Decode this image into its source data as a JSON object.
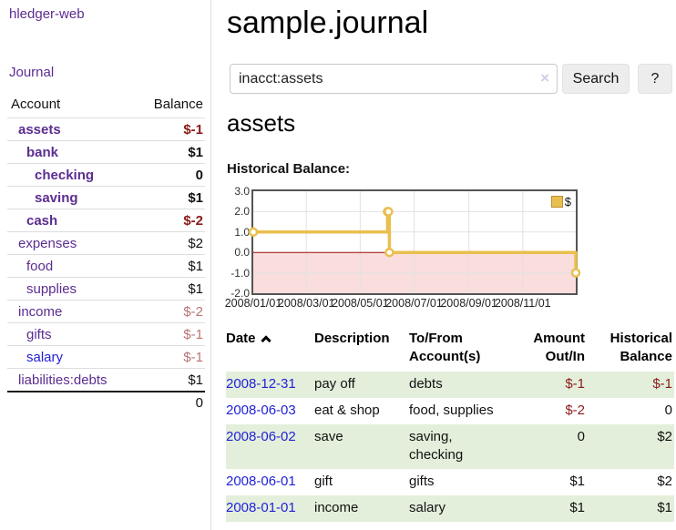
{
  "sidebar": {
    "app_title": "hledger-web",
    "nav": {
      "journal_label": "Journal"
    },
    "accounts_table": {
      "headers": {
        "account": "Account",
        "balance": "Balance"
      },
      "rows": [
        {
          "name": "assets",
          "balance": "$-1"
        },
        {
          "name": "bank",
          "balance": "$1"
        },
        {
          "name": "checking",
          "balance": "0"
        },
        {
          "name": "saving",
          "balance": "$1"
        },
        {
          "name": "cash",
          "balance": "$-2"
        },
        {
          "name": "expenses",
          "balance": "$2"
        },
        {
          "name": "food",
          "balance": "$1"
        },
        {
          "name": "supplies",
          "balance": "$1"
        },
        {
          "name": "income",
          "balance": "$-2"
        },
        {
          "name": "gifts",
          "balance": "$-1"
        },
        {
          "name": "salary",
          "balance": "$-1"
        },
        {
          "name": "liabilities:debts",
          "balance": "$1"
        }
      ],
      "total": "0"
    }
  },
  "header": {
    "title": "sample.journal"
  },
  "search": {
    "value": "inacct:assets",
    "clear_icon": "×",
    "search_label": "Search",
    "help_label": "?"
  },
  "account_page": {
    "title": "assets",
    "chart_label": "Historical Balance:"
  },
  "chart_data": {
    "type": "line",
    "step": true,
    "title": "Historical Balance:",
    "x_range": [
      "2008-01-01",
      "2008-12-31"
    ],
    "ylim": [
      -2,
      3
    ],
    "y_ticks": [
      "3.0",
      "2.0",
      "1.0",
      "0.0",
      "-1.0",
      "-2.0"
    ],
    "x_ticks": [
      "2008/01/01",
      "2008/03/01",
      "2008/05/01",
      "2008/07/01",
      "2008/09/01",
      "2008/11/01"
    ],
    "series": [
      {
        "name": "$",
        "color": "#e9bf4f",
        "points": [
          {
            "date": "2008-01-01",
            "value": 1
          },
          {
            "date": "2008-06-01",
            "value": 2
          },
          {
            "date": "2008-06-02",
            "value": 2
          },
          {
            "date": "2008-06-03",
            "value": 0
          },
          {
            "date": "2008-12-31",
            "value": -1
          }
        ]
      }
    ],
    "legend": {
      "label": "$",
      "position": "top-right"
    },
    "grid": true,
    "negative_region": true,
    "colors": {
      "negative_fill": "#fadddd",
      "zero_line": "#9c0b0b",
      "grid": "#e2e2e2",
      "border": "#545454"
    }
  },
  "register": {
    "headers": {
      "date": "Date",
      "description": "Description",
      "tofrom_1": "To/From",
      "tofrom_2": "Account(s)",
      "amount_1": "Amount",
      "amount_2": "Out/In",
      "balance_1": "Historical",
      "balance_2": "Balance"
    },
    "rows": [
      {
        "date": "2008-12-31",
        "description": "pay off",
        "accounts": "debts",
        "amount": "$-1",
        "balance": "$-1"
      },
      {
        "date": "2008-06-03",
        "description": "eat & shop",
        "accounts": "food, supplies",
        "amount": "$-2",
        "balance": "0"
      },
      {
        "date": "2008-06-02",
        "description": "save",
        "accounts": "saving, checking",
        "amount": "0",
        "balance": "$2"
      },
      {
        "date": "2008-06-01",
        "description": "gift",
        "accounts": "gifts",
        "amount": "$1",
        "balance": "$2"
      },
      {
        "date": "2008-01-01",
        "description": "income",
        "accounts": "salary",
        "amount": "$1",
        "balance": "$1"
      }
    ]
  },
  "colors": {
    "link_purple": "#5c2d91",
    "link_blue": "#2222d8",
    "negative": "#8b1a1a",
    "negative_faded": "#b97474",
    "row_shade_green": "#e3efdb",
    "series_gold": "#e9bf4f"
  }
}
